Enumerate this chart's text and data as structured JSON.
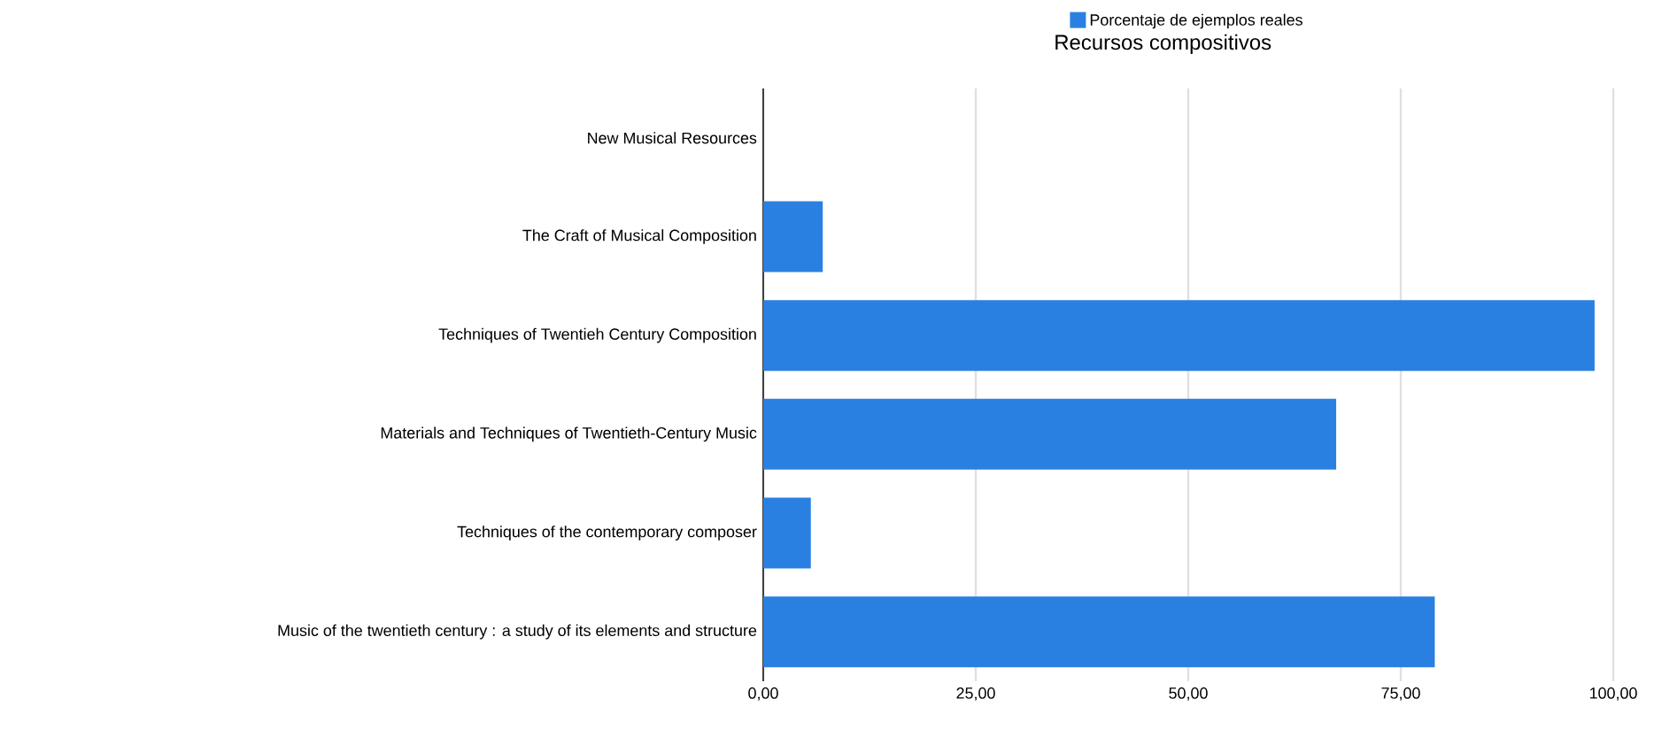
{
  "chart_data": {
    "type": "bar",
    "orientation": "horizontal",
    "title": "Recursos compositivos",
    "categories": [
      "New Musical Resources",
      "The Craft of Musical Composition",
      "Techniques of Twentieh Century Composition",
      "Materials and Techniques of Twentieth-Century Music",
      "Techniques of the contemporary composer",
      "Music of the twentieth century : a study of its elements and structure"
    ],
    "series": [
      {
        "name": "Porcentaje de ejemplos reales",
        "color": "#2a80e0",
        "values": [
          0,
          7.0,
          97.8,
          67.4,
          5.6,
          79.0
        ]
      }
    ],
    "xlim": [
      0,
      100
    ],
    "xticks": [
      {
        "value": 0,
        "label": "0,00"
      },
      {
        "value": 25,
        "label": "25,00"
      },
      {
        "value": 50,
        "label": "50,00"
      },
      {
        "value": 75,
        "label": "75,00"
      },
      {
        "value": 100,
        "label": "100,00"
      }
    ],
    "grid": "x",
    "legend": "top"
  }
}
